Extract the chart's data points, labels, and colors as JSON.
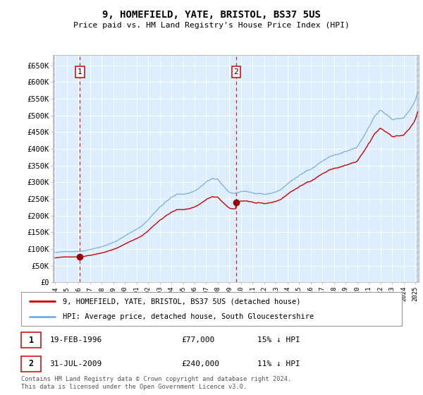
{
  "title": "9, HOMEFIELD, YATE, BRISTOL, BS37 5US",
  "subtitle": "Price paid vs. HM Land Registry's House Price Index (HPI)",
  "ylim": [
    0,
    680000
  ],
  "yticks": [
    0,
    50000,
    100000,
    150000,
    200000,
    250000,
    300000,
    350000,
    400000,
    450000,
    500000,
    550000,
    600000,
    650000
  ],
  "ytick_labels": [
    "£0",
    "£50K",
    "£100K",
    "£150K",
    "£200K",
    "£250K",
    "£300K",
    "£350K",
    "£400K",
    "£450K",
    "£500K",
    "£550K",
    "£600K",
    "£650K"
  ],
  "background_color": "#ffffff",
  "plot_bg_color": "#ddeeff",
  "grid_color": "#ffffff",
  "sale1_date": 1996.13,
  "sale1_price": 77000,
  "sale2_date": 2009.58,
  "sale2_price": 240000,
  "legend_line1": "9, HOMEFIELD, YATE, BRISTOL, BS37 5US (detached house)",
  "legend_line2": "HPI: Average price, detached house, South Gloucestershire",
  "footnote": "Contains HM Land Registry data © Crown copyright and database right 2024.\nThis data is licensed under the Open Government Licence v3.0.",
  "red_line_color": "#cc0000",
  "blue_line_color": "#7aadda",
  "sale_marker_color": "#990000",
  "dashed_line_color": "#dd0000",
  "xmin": 1993.8,
  "xmax": 2025.3
}
